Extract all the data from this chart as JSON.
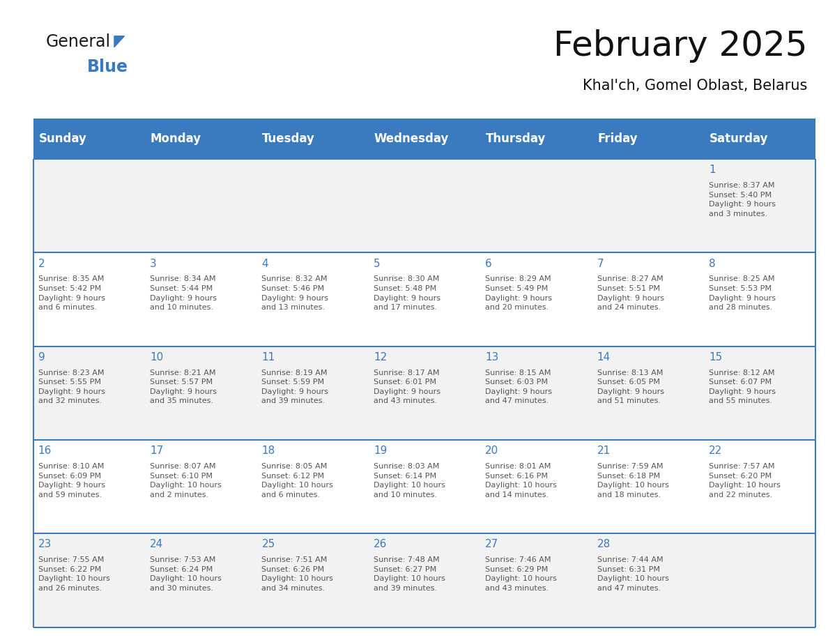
{
  "title": "February 2025",
  "subtitle": "Khal'ch, Gomel Oblast, Belarus",
  "header_bg": "#3a7abf",
  "header_text": "#ffffff",
  "cell_bg_odd": "#f2f2f2",
  "cell_bg_even": "#ffffff",
  "day_num_color": "#3a7abf",
  "text_color": "#555555",
  "line_color": "#3a7abf",
  "border_color": "#3a7abf",
  "days_of_week": [
    "Sunday",
    "Monday",
    "Tuesday",
    "Wednesday",
    "Thursday",
    "Friday",
    "Saturday"
  ],
  "weeks": [
    [
      {
        "day": null,
        "info": null
      },
      {
        "day": null,
        "info": null
      },
      {
        "day": null,
        "info": null
      },
      {
        "day": null,
        "info": null
      },
      {
        "day": null,
        "info": null
      },
      {
        "day": null,
        "info": null
      },
      {
        "day": "1",
        "info": "Sunrise: 8:37 AM\nSunset: 5:40 PM\nDaylight: 9 hours\nand 3 minutes."
      }
    ],
    [
      {
        "day": "2",
        "info": "Sunrise: 8:35 AM\nSunset: 5:42 PM\nDaylight: 9 hours\nand 6 minutes."
      },
      {
        "day": "3",
        "info": "Sunrise: 8:34 AM\nSunset: 5:44 PM\nDaylight: 9 hours\nand 10 minutes."
      },
      {
        "day": "4",
        "info": "Sunrise: 8:32 AM\nSunset: 5:46 PM\nDaylight: 9 hours\nand 13 minutes."
      },
      {
        "day": "5",
        "info": "Sunrise: 8:30 AM\nSunset: 5:48 PM\nDaylight: 9 hours\nand 17 minutes."
      },
      {
        "day": "6",
        "info": "Sunrise: 8:29 AM\nSunset: 5:49 PM\nDaylight: 9 hours\nand 20 minutes."
      },
      {
        "day": "7",
        "info": "Sunrise: 8:27 AM\nSunset: 5:51 PM\nDaylight: 9 hours\nand 24 minutes."
      },
      {
        "day": "8",
        "info": "Sunrise: 8:25 AM\nSunset: 5:53 PM\nDaylight: 9 hours\nand 28 minutes."
      }
    ],
    [
      {
        "day": "9",
        "info": "Sunrise: 8:23 AM\nSunset: 5:55 PM\nDaylight: 9 hours\nand 32 minutes."
      },
      {
        "day": "10",
        "info": "Sunrise: 8:21 AM\nSunset: 5:57 PM\nDaylight: 9 hours\nand 35 minutes."
      },
      {
        "day": "11",
        "info": "Sunrise: 8:19 AM\nSunset: 5:59 PM\nDaylight: 9 hours\nand 39 minutes."
      },
      {
        "day": "12",
        "info": "Sunrise: 8:17 AM\nSunset: 6:01 PM\nDaylight: 9 hours\nand 43 minutes."
      },
      {
        "day": "13",
        "info": "Sunrise: 8:15 AM\nSunset: 6:03 PM\nDaylight: 9 hours\nand 47 minutes."
      },
      {
        "day": "14",
        "info": "Sunrise: 8:13 AM\nSunset: 6:05 PM\nDaylight: 9 hours\nand 51 minutes."
      },
      {
        "day": "15",
        "info": "Sunrise: 8:12 AM\nSunset: 6:07 PM\nDaylight: 9 hours\nand 55 minutes."
      }
    ],
    [
      {
        "day": "16",
        "info": "Sunrise: 8:10 AM\nSunset: 6:09 PM\nDaylight: 9 hours\nand 59 minutes."
      },
      {
        "day": "17",
        "info": "Sunrise: 8:07 AM\nSunset: 6:10 PM\nDaylight: 10 hours\nand 2 minutes."
      },
      {
        "day": "18",
        "info": "Sunrise: 8:05 AM\nSunset: 6:12 PM\nDaylight: 10 hours\nand 6 minutes."
      },
      {
        "day": "19",
        "info": "Sunrise: 8:03 AM\nSunset: 6:14 PM\nDaylight: 10 hours\nand 10 minutes."
      },
      {
        "day": "20",
        "info": "Sunrise: 8:01 AM\nSunset: 6:16 PM\nDaylight: 10 hours\nand 14 minutes."
      },
      {
        "day": "21",
        "info": "Sunrise: 7:59 AM\nSunset: 6:18 PM\nDaylight: 10 hours\nand 18 minutes."
      },
      {
        "day": "22",
        "info": "Sunrise: 7:57 AM\nSunset: 6:20 PM\nDaylight: 10 hours\nand 22 minutes."
      }
    ],
    [
      {
        "day": "23",
        "info": "Sunrise: 7:55 AM\nSunset: 6:22 PM\nDaylight: 10 hours\nand 26 minutes."
      },
      {
        "day": "24",
        "info": "Sunrise: 7:53 AM\nSunset: 6:24 PM\nDaylight: 10 hours\nand 30 minutes."
      },
      {
        "day": "25",
        "info": "Sunrise: 7:51 AM\nSunset: 6:26 PM\nDaylight: 10 hours\nand 34 minutes."
      },
      {
        "day": "26",
        "info": "Sunrise: 7:48 AM\nSunset: 6:27 PM\nDaylight: 10 hours\nand 39 minutes."
      },
      {
        "day": "27",
        "info": "Sunrise: 7:46 AM\nSunset: 6:29 PM\nDaylight: 10 hours\nand 43 minutes."
      },
      {
        "day": "28",
        "info": "Sunrise: 7:44 AM\nSunset: 6:31 PM\nDaylight: 10 hours\nand 47 minutes."
      },
      {
        "day": null,
        "info": null
      }
    ]
  ],
  "logo_text_general": "General",
  "logo_text_blue": "Blue",
  "logo_color_general": "#1a1a1a",
  "logo_color_blue": "#3a7abf",
  "logo_triangle_color": "#3a7abf",
  "fig_width": 11.88,
  "fig_height": 9.18,
  "dpi": 100
}
